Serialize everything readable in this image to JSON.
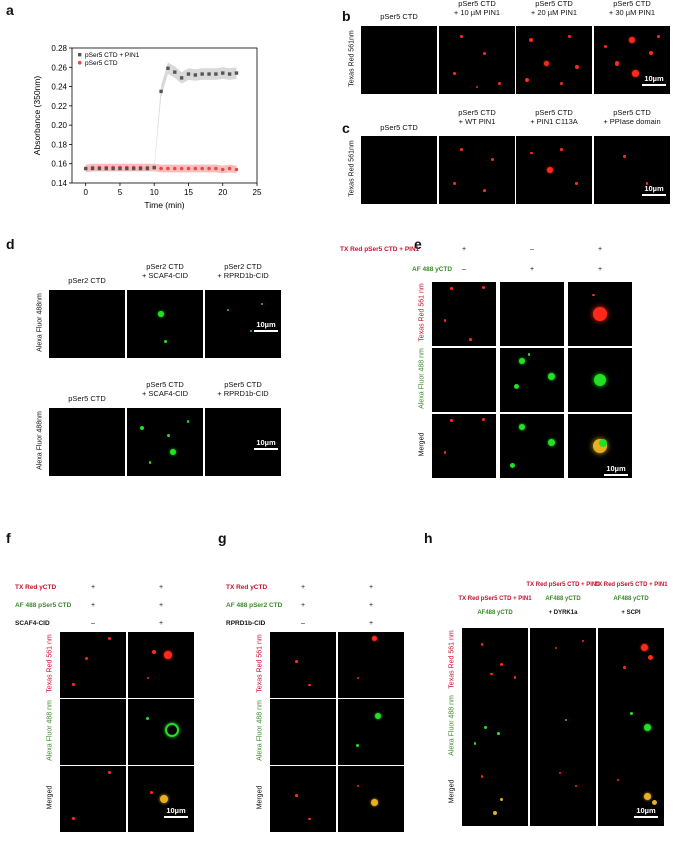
{
  "panels": {
    "a": "a",
    "b": "b",
    "c": "c",
    "d": "d",
    "e": "e",
    "f": "f",
    "g": "g",
    "h": "h"
  },
  "chart_data": {
    "type": "scatter",
    "xlabel": "Time (min)",
    "ylabel": "Absorbance (350nm)",
    "xlim": [
      -2,
      25
    ],
    "ylim": [
      0.14,
      0.28
    ],
    "xticks": [
      0,
      5,
      10,
      15,
      20,
      25
    ],
    "yticks": [
      0.14,
      0.16,
      0.18,
      0.2,
      0.22,
      0.24,
      0.26,
      0.28
    ],
    "legend_position": "top-left",
    "series": [
      {
        "name": "pSer5 CTD + PIN1",
        "color": "#555555",
        "x": [
          0,
          1,
          2,
          3,
          4,
          5,
          6,
          7,
          8,
          9,
          10,
          11,
          12,
          13,
          14,
          15,
          16,
          17,
          18,
          19,
          20,
          21,
          22
        ],
        "y": [
          0.155,
          0.155,
          0.155,
          0.155,
          0.155,
          0.155,
          0.155,
          0.155,
          0.155,
          0.155,
          0.156,
          0.235,
          0.259,
          0.255,
          0.249,
          0.253,
          0.252,
          0.253,
          0.253,
          0.253,
          0.254,
          0.253,
          0.254
        ]
      },
      {
        "name": "pSer5 CTD",
        "color": "#e84a4a",
        "x": [
          0,
          1,
          2,
          3,
          4,
          5,
          6,
          7,
          8,
          9,
          10,
          11,
          12,
          13,
          14,
          15,
          16,
          17,
          18,
          19,
          20,
          21,
          22
        ],
        "y": [
          0.155,
          0.156,
          0.156,
          0.156,
          0.156,
          0.156,
          0.156,
          0.156,
          0.156,
          0.156,
          0.156,
          0.155,
          0.155,
          0.155,
          0.155,
          0.155,
          0.155,
          0.155,
          0.155,
          0.155,
          0.154,
          0.155,
          0.154
        ]
      }
    ]
  },
  "b": {
    "cols": [
      "pSer5 CTD",
      "pSer5 CTD\n+ 10 µM PIN1",
      "pSer5 CTD\n+ 20 µM PIN1",
      "pSer5 CTD\n+ 30 µM PIN1"
    ],
    "row": "Texas Red 561nm",
    "scale": "10µm"
  },
  "c": {
    "cols": [
      "pSer5 CTD",
      "pSer5 CTD\n+ WT PIN1",
      "pSer5 CTD\n+ PIN1 C113A",
      "pSer5 CTD\n+ PPIase domain"
    ],
    "row": "Texas Red 561nm",
    "scale": "10µm"
  },
  "d": {
    "cols_top": [
      "pSer2 CTD",
      "pSer2 CTD\n+ SCAF4-CID",
      "pSer2 CTD\n+ RPRD1b-CID"
    ],
    "cols_bottom": [
      "pSer5 CTD",
      "pSer5 CTD\n+ SCAF4-CID",
      "pSer5 CTD\n+ RPRD1b-CID"
    ],
    "row": "Alexa Fluor 488nm",
    "scale": "10µm"
  },
  "e": {
    "cond1": "TX Red pSer5 CTD + PIN1",
    "cond1_signs": [
      "+",
      "–",
      "+"
    ],
    "cond2": "AF 488 yCTD",
    "cond2_signs": [
      "–",
      "+",
      "+"
    ],
    "rows": [
      "Texas Red 561 nm",
      "Alexa Fluor 488 nm",
      "Merged"
    ],
    "scale": "10µm"
  },
  "f": {
    "cond1": "TX Red yCTD",
    "cond1_signs": [
      "+",
      "+"
    ],
    "cond2": "AF 488 pSer5 CTD",
    "cond2_signs": [
      "+",
      "+"
    ],
    "cond3": "SCAF4-CID",
    "cond3_signs": [
      "–",
      "+"
    ],
    "rows": [
      "Texas Red 561 nm",
      "Alexa Fluor 488 nm",
      "Merged"
    ],
    "scale": "10µm"
  },
  "g": {
    "cond1": "TX Red yCTD",
    "cond1_signs": [
      "+",
      "+"
    ],
    "cond2": "AF 488 pSer2 CTD",
    "cond2_signs": [
      "+",
      "+"
    ],
    "cond3": "RPRD1b-CID",
    "cond3_signs": [
      "–",
      "+"
    ],
    "rows": [
      "Texas Red 561 nm",
      "Alexa Fluor 488 nm",
      "Merged"
    ],
    "scale": "10µm"
  },
  "h": {
    "col1_red": "TX Red pSer5 CTD + PIN1",
    "col1_grn": "AF488 yCTD",
    "col2_red": "TX Red pSer5 CTD + PIN1",
    "col2_grn": "AF488 yCTD",
    "col2_blk": "+ DYRK1a",
    "col3_red": "TX Red pSer5 CTD + PIN1",
    "col3_grn": "AF488 yCTD",
    "col3_blk": "+ SCPI",
    "rows": [
      "Texas Red 561 nm",
      "Alexa Fluor 488 nm",
      "Merged"
    ],
    "scale": "10µm"
  }
}
